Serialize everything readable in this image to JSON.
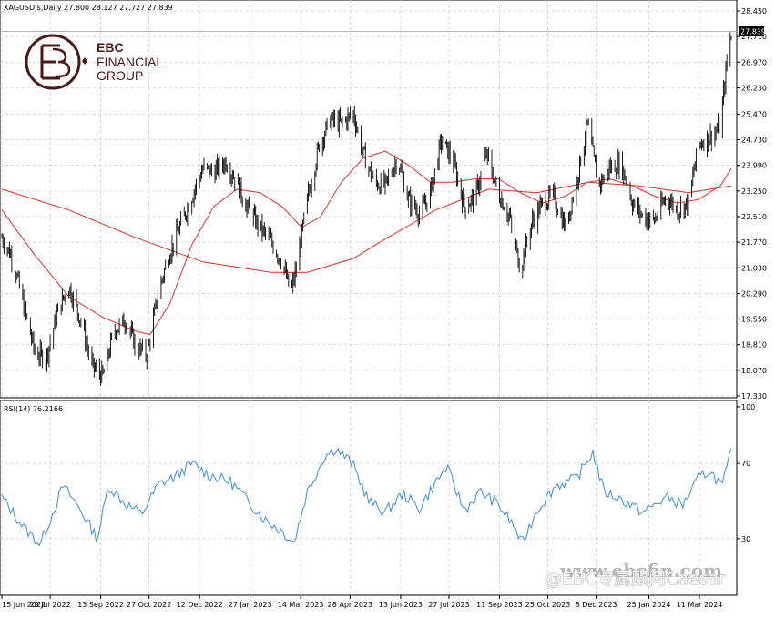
{
  "chart_data": [
    {
      "type": "candlestick",
      "header": "XAGUSD.s,Daily  27.800 28.127 27.727 27.839",
      "symbol": "XAGUSD.s",
      "timeframe": "Daily",
      "last_ohlc": {
        "open": 27.8,
        "high": 28.127,
        "low": 27.727,
        "close": 27.839
      },
      "last_price_label": "27.839",
      "y_ticks": [
        "28.450",
        "27.710",
        "26.970",
        "26.230",
        "25.470",
        "24.730",
        "23.990",
        "23.250",
        "22.510",
        "21.770",
        "21.030",
        "20.290",
        "19.550",
        "18.810",
        "18.070",
        "17.330"
      ],
      "y_tick_values": [
        28.45,
        27.71,
        26.97,
        26.23,
        25.47,
        24.73,
        23.99,
        23.25,
        22.51,
        21.77,
        21.03,
        20.29,
        19.55,
        18.81,
        18.07,
        17.33
      ],
      "ylim": [
        17.33,
        28.45
      ],
      "grid": true,
      "close_series": [
        [
          "2022-06-15",
          21.9
        ],
        [
          "2022-06-25",
          21.3
        ],
        [
          "2022-07-05",
          19.9
        ],
        [
          "2022-07-15",
          18.6
        ],
        [
          "2022-07-25",
          18.4
        ],
        [
          "2022-08-05",
          19.8
        ],
        [
          "2022-08-15",
          20.5
        ],
        [
          "2022-08-25",
          19.6
        ],
        [
          "2022-09-05",
          18.2
        ],
        [
          "2022-09-15",
          17.9
        ],
        [
          "2022-09-25",
          19.2
        ],
        [
          "2022-10-05",
          19.5
        ],
        [
          "2022-10-15",
          18.8
        ],
        [
          "2022-10-25",
          18.5
        ],
        [
          "2022-11-05",
          20.4
        ],
        [
          "2022-11-15",
          21.5
        ],
        [
          "2022-11-25",
          22.3
        ],
        [
          "2022-12-05",
          23.1
        ],
        [
          "2022-12-15",
          23.9
        ],
        [
          "2022-12-25",
          23.8
        ],
        [
          "2023-01-05",
          24.1
        ],
        [
          "2023-01-15",
          23.5
        ],
        [
          "2023-01-25",
          22.7
        ],
        [
          "2023-02-05",
          22.2
        ],
        [
          "2023-02-15",
          21.8
        ],
        [
          "2023-02-25",
          21.2
        ],
        [
          "2023-03-05",
          20.3
        ],
        [
          "2023-03-10",
          21.0
        ],
        [
          "2023-03-20",
          23.0
        ],
        [
          "2023-03-31",
          24.6
        ],
        [
          "2023-04-10",
          25.3
        ],
        [
          "2023-04-20",
          25.2
        ],
        [
          "2023-05-01",
          25.5
        ],
        [
          "2023-05-10",
          24.3
        ],
        [
          "2023-05-20",
          23.5
        ],
        [
          "2023-05-30",
          23.4
        ],
        [
          "2023-06-10",
          24.2
        ],
        [
          "2023-06-20",
          23.0
        ],
        [
          "2023-07-01",
          22.6
        ],
        [
          "2023-07-10",
          23.2
        ],
        [
          "2023-07-20",
          24.7
        ],
        [
          "2023-07-30",
          24.2
        ],
        [
          "2023-08-10",
          22.8
        ],
        [
          "2023-08-20",
          23.1
        ],
        [
          "2023-08-30",
          24.3
        ],
        [
          "2023-09-10",
          23.2
        ],
        [
          "2023-09-20",
          22.5
        ],
        [
          "2023-09-30",
          21.0
        ],
        [
          "2023-10-10",
          22.3
        ],
        [
          "2023-10-20",
          22.9
        ],
        [
          "2023-10-30",
          23.1
        ],
        [
          "2023-11-10",
          22.2
        ],
        [
          "2023-11-20",
          23.5
        ],
        [
          "2023-11-30",
          25.2
        ],
        [
          "2023-12-10",
          23.4
        ],
        [
          "2023-12-20",
          23.9
        ],
        [
          "2023-12-30",
          24.1
        ],
        [
          "2024-01-10",
          22.9
        ],
        [
          "2024-01-20",
          22.5
        ],
        [
          "2024-01-30",
          22.4
        ],
        [
          "2024-02-10",
          23.1
        ],
        [
          "2024-02-20",
          22.7
        ],
        [
          "2024-03-01",
          22.9
        ],
        [
          "2024-03-10",
          24.6
        ],
        [
          "2024-03-20",
          24.8
        ],
        [
          "2024-03-30",
          25.1
        ],
        [
          "2024-04-05",
          27.0
        ],
        [
          "2024-04-09",
          27.839
        ]
      ],
      "ma_fast": [
        [
          "2022-06-15",
          22.7
        ],
        [
          "2022-07-15",
          21.4
        ],
        [
          "2022-08-15",
          20.2
        ],
        [
          "2022-09-15",
          19.6
        ],
        [
          "2022-10-15",
          19.2
        ],
        [
          "2022-10-28",
          19.1
        ],
        [
          "2022-11-15",
          20.0
        ],
        [
          "2022-12-05",
          21.7
        ],
        [
          "2022-12-25",
          22.8
        ],
        [
          "2023-01-15",
          23.3
        ],
        [
          "2023-02-05",
          23.2
        ],
        [
          "2023-02-25",
          22.8
        ],
        [
          "2023-03-15",
          22.2
        ],
        [
          "2023-04-01",
          22.5
        ],
        [
          "2023-04-20",
          23.5
        ],
        [
          "2023-05-10",
          24.2
        ],
        [
          "2023-05-30",
          24.4
        ],
        [
          "2023-06-20",
          24.0
        ],
        [
          "2023-07-10",
          23.5
        ],
        [
          "2023-07-30",
          23.5
        ],
        [
          "2023-08-20",
          23.6
        ],
        [
          "2023-09-10",
          23.6
        ],
        [
          "2023-09-30",
          23.2
        ],
        [
          "2023-10-20",
          22.9
        ],
        [
          "2023-11-10",
          23.1
        ],
        [
          "2023-11-30",
          23.5
        ],
        [
          "2023-12-20",
          23.6
        ],
        [
          "2024-01-10",
          23.4
        ],
        [
          "2024-01-30",
          23.1
        ],
        [
          "2024-02-20",
          22.9
        ],
        [
          "2024-03-10",
          23.0
        ],
        [
          "2024-03-30",
          23.4
        ],
        [
          "2024-04-09",
          23.9
        ]
      ],
      "ma_slow": [
        [
          "2022-06-15",
          23.3
        ],
        [
          "2022-08-15",
          22.7
        ],
        [
          "2022-10-15",
          21.9
        ],
        [
          "2022-12-15",
          21.2
        ],
        [
          "2023-02-15",
          20.9
        ],
        [
          "2023-03-20",
          20.9
        ],
        [
          "2023-05-01",
          21.3
        ],
        [
          "2023-06-01",
          21.9
        ],
        [
          "2023-07-15",
          22.7
        ],
        [
          "2023-09-01",
          23.3
        ],
        [
          "2023-10-15",
          23.2
        ],
        [
          "2023-12-01",
          23.5
        ],
        [
          "2024-01-15",
          23.4
        ],
        [
          "2024-03-01",
          23.2
        ],
        [
          "2024-04-09",
          23.4
        ]
      ]
    },
    {
      "type": "line",
      "header": "RSI(14) 76.2166",
      "indicator": "RSI(14)",
      "last_value": "76.2166",
      "y_ticks": [
        "100",
        "70",
        "30"
      ],
      "y_tick_values": [
        100,
        70,
        30
      ],
      "ylim": [
        0,
        100
      ],
      "grid": true,
      "values": [
        [
          "2022-06-15",
          52
        ],
        [
          "2022-07-05",
          36
        ],
        [
          "2022-07-20",
          27
        ],
        [
          "2022-08-10",
          58
        ],
        [
          "2022-08-25",
          46
        ],
        [
          "2022-09-10",
          30
        ],
        [
          "2022-09-20",
          58
        ],
        [
          "2022-10-05",
          49
        ],
        [
          "2022-10-20",
          43
        ],
        [
          "2022-11-05",
          59
        ],
        [
          "2022-11-20",
          63
        ],
        [
          "2022-12-05",
          70
        ],
        [
          "2022-12-20",
          64
        ],
        [
          "2023-01-10",
          60
        ],
        [
          "2023-01-25",
          50
        ],
        [
          "2023-02-10",
          40
        ],
        [
          "2023-02-25",
          34
        ],
        [
          "2023-03-08",
          28
        ],
        [
          "2023-03-20",
          55
        ],
        [
          "2023-04-05",
          74
        ],
        [
          "2023-04-15",
          78
        ],
        [
          "2023-04-30",
          70
        ],
        [
          "2023-05-15",
          50
        ],
        [
          "2023-05-30",
          44
        ],
        [
          "2023-06-15",
          54
        ],
        [
          "2023-06-30",
          46
        ],
        [
          "2023-07-15",
          60
        ],
        [
          "2023-07-25",
          68
        ],
        [
          "2023-08-10",
          45
        ],
        [
          "2023-08-25",
          55
        ],
        [
          "2023-09-10",
          48
        ],
        [
          "2023-09-25",
          36
        ],
        [
          "2023-10-01",
          27
        ],
        [
          "2023-10-15",
          45
        ],
        [
          "2023-11-01",
          58
        ],
        [
          "2023-11-20",
          62
        ],
        [
          "2023-12-05",
          76
        ],
        [
          "2023-12-15",
          55
        ],
        [
          "2023-12-30",
          51
        ],
        [
          "2024-01-20",
          44
        ],
        [
          "2024-02-10",
          52
        ],
        [
          "2024-02-25",
          48
        ],
        [
          "2024-03-10",
          62
        ],
        [
          "2024-03-20",
          66
        ],
        [
          "2024-04-01",
          58
        ],
        [
          "2024-04-09",
          76.2
        ]
      ]
    }
  ],
  "x_ticks": [
    "15 Jun 2022",
    "29 Jul 2022",
    "13 Sep 2022",
    "27 Oct 2022",
    "12 Dec 2022",
    "27 Jan 2023",
    "14 Mar 2023",
    "28 Apr 2023",
    "13 Jun 2023",
    "27 Jul 2023",
    "11 Sep 2023",
    "25 Oct 2023",
    "8 Dec 2023",
    "25 Jan 2024",
    "11 Mar 2024"
  ],
  "x_tick_dates": [
    "2022-06-15",
    "2022-07-29",
    "2022-09-13",
    "2022-10-27",
    "2022-12-12",
    "2023-01-27",
    "2023-03-14",
    "2023-04-28",
    "2023-06-13",
    "2023-07-27",
    "2023-09-11",
    "2023-10-25",
    "2023-12-08",
    "2024-01-25",
    "2024-03-11"
  ],
  "x_range": [
    "2022-06-15",
    "2024-04-09"
  ],
  "colors": {
    "candles": "#000000",
    "ma": "#e0302a",
    "rsi": "#3a8ed8",
    "grid": "#c8c8c8",
    "logo": "#4a1a17"
  },
  "logo": {
    "line1": "EBC",
    "line2": "FINANCIAL",
    "line3": "GROUP"
  },
  "watermark_url": "www.ebcfin.com",
  "social_watermark": "@EBC专属顾问Caesar"
}
